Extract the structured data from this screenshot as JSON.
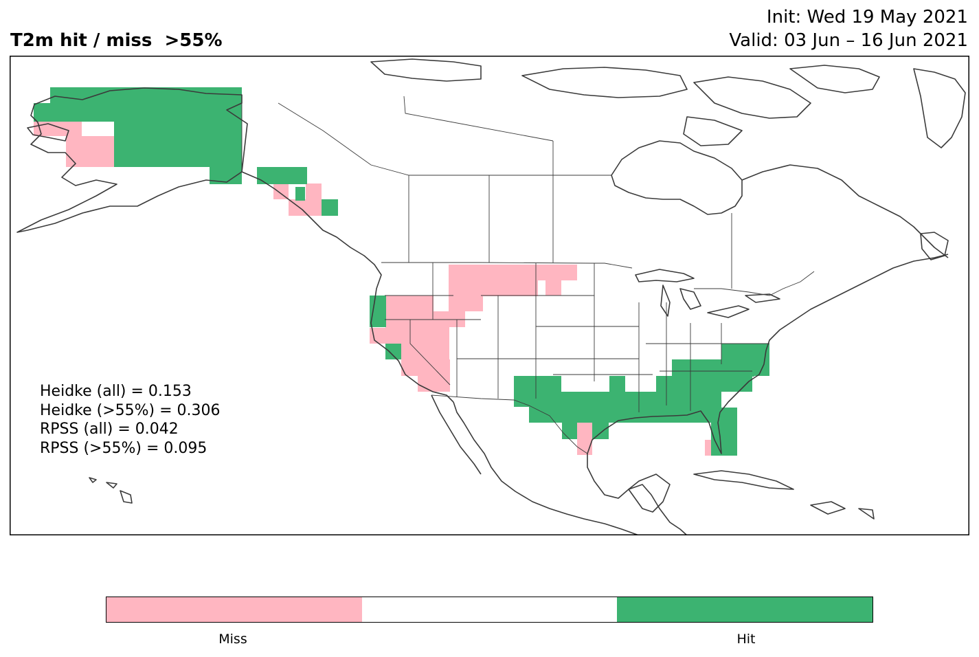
{
  "title": "T2m hit / miss  >55%",
  "init": "Init: Wed 19 May 2021",
  "valid": "Valid: 03 Jun – 16 Jun 2021",
  "stats": [
    "Heidke (all) = 0.153",
    "Heidke (>55%) = 0.306",
    "RPSS (all) = 0.042",
    "RPSS (>55%) = 0.095"
  ],
  "colors": {
    "miss": "#ffb6c1",
    "hit": "#3cb371",
    "neutral": "#ffffff",
    "coast": "#3a3a3a"
  },
  "legend": {
    "miss_label": "Miss",
    "hit_label": "Hit"
  },
  "map": {
    "region": "North America",
    "hit_regions": [
      "northern Alaska",
      "southeast Alaska / coastal BC",
      "northern California coast",
      "central California coast",
      "Texas",
      "Gulf Coast",
      "southeastern US",
      "Virginia / mid-Atlantic",
      "central and southern Florida"
    ],
    "miss_regions": [
      "western Alaska",
      "southeast Alaska / BC interior",
      "Oregon / Idaho",
      "Nevada",
      "southern California",
      "Montana",
      "North Dakota",
      "Wyoming",
      "south Texas",
      "southern Florida"
    ]
  }
}
